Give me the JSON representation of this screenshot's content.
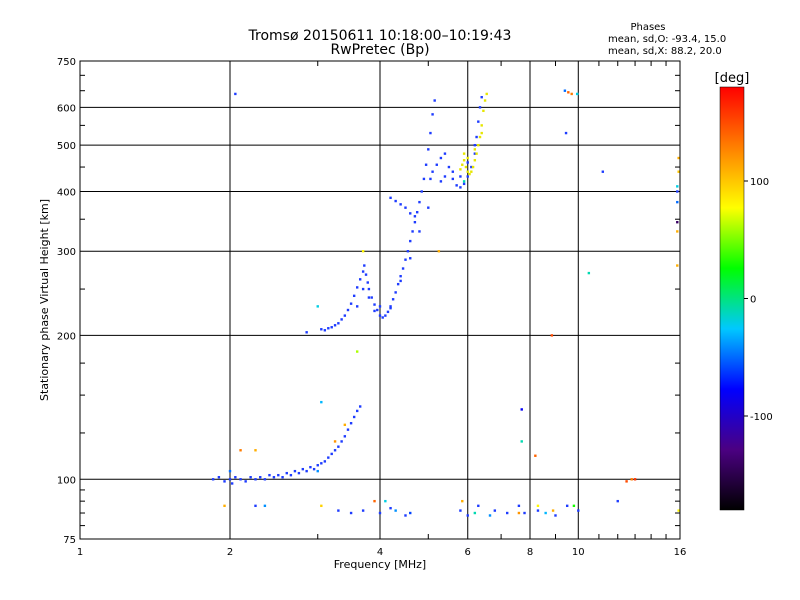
{
  "chart_data": {
    "type": "scatter",
    "title": "Tromsø 20150611 10:18:00–10:19:43",
    "subtitle": "RwPretec (Bp)",
    "xlabel": "Frequency [MHz]",
    "ylabel": "Stationary phase Virtual Height [km]",
    "x_scale": "log",
    "y_scale": "log",
    "xlim": [
      1,
      16
    ],
    "ylim": [
      75,
      750
    ],
    "x_ticks": [
      1,
      2,
      4,
      6,
      8,
      10,
      16
    ],
    "y_ticks": [
      75,
      100,
      200,
      300,
      400,
      500,
      600,
      750
    ],
    "grid": true,
    "stats": {
      "title": "Phases",
      "line1": "mean, sd,O:  -93.4, 15.0",
      "line2": "mean, sd,X:  88.2, 20.0"
    },
    "colorbar": {
      "label": "[deg]",
      "range": [
        -180,
        180
      ],
      "ticks": [
        -100,
        0,
        100
      ],
      "colors": [
        "#000000",
        "#4b0082",
        "#0000ff",
        "#00c8ff",
        "#00ff00",
        "#ffff00",
        "#ff8000",
        "#ff0000"
      ]
    },
    "series": [
      {
        "name": "O",
        "points": [
          [
            1.85,
            100
          ],
          [
            1.9,
            101
          ],
          [
            1.95,
            99
          ],
          [
            2.0,
            100
          ],
          [
            2.02,
            98
          ],
          [
            2.05,
            101
          ],
          [
            2.1,
            100
          ],
          [
            2.15,
            99
          ],
          [
            2.2,
            101
          ],
          [
            2.25,
            100
          ],
          [
            2.3,
            101
          ],
          [
            2.35,
            100
          ],
          [
            2.4,
            102
          ],
          [
            2.45,
            101
          ],
          [
            2.5,
            102
          ],
          [
            2.55,
            101
          ],
          [
            2.6,
            103
          ],
          [
            2.65,
            102
          ],
          [
            2.7,
            104
          ],
          [
            2.75,
            103
          ],
          [
            2.8,
            105
          ],
          [
            2.85,
            104
          ],
          [
            2.9,
            106
          ],
          [
            2.95,
            105
          ],
          [
            3.0,
            107
          ],
          [
            3.05,
            108
          ],
          [
            3.1,
            109
          ],
          [
            3.15,
            111
          ],
          [
            3.2,
            113
          ],
          [
            3.25,
            115
          ],
          [
            3.3,
            117
          ],
          [
            3.35,
            120
          ],
          [
            3.4,
            123
          ],
          [
            3.45,
            127
          ],
          [
            3.5,
            131
          ],
          [
            3.55,
            135
          ],
          [
            3.6,
            139
          ],
          [
            3.65,
            142
          ],
          [
            3.05,
            206
          ],
          [
            3.1,
            205
          ],
          [
            3.15,
            207
          ],
          [
            3.2,
            208
          ],
          [
            3.25,
            210
          ],
          [
            3.3,
            212
          ],
          [
            3.35,
            216
          ],
          [
            3.4,
            220
          ],
          [
            3.45,
            226
          ],
          [
            3.5,
            233
          ],
          [
            3.55,
            242
          ],
          [
            3.6,
            252
          ],
          [
            3.65,
            262
          ],
          [
            3.7,
            272
          ],
          [
            3.72,
            280
          ],
          [
            3.75,
            268
          ],
          [
            3.78,
            258
          ],
          [
            3.8,
            250
          ],
          [
            3.85,
            240
          ],
          [
            3.9,
            232
          ],
          [
            3.95,
            226
          ],
          [
            4.0,
            220
          ],
          [
            4.05,
            218
          ],
          [
            4.1,
            220
          ],
          [
            4.15,
            224
          ],
          [
            4.2,
            230
          ],
          [
            4.25,
            238
          ],
          [
            4.3,
            246
          ],
          [
            4.35,
            256
          ],
          [
            4.4,
            266
          ],
          [
            4.45,
            276
          ],
          [
            4.5,
            288
          ],
          [
            4.55,
            300
          ],
          [
            4.6,
            315
          ],
          [
            4.65,
            330
          ],
          [
            4.7,
            345
          ],
          [
            4.75,
            362
          ],
          [
            4.8,
            380
          ],
          [
            4.85,
            400
          ],
          [
            4.9,
            425
          ],
          [
            4.95,
            455
          ],
          [
            5.0,
            490
          ],
          [
            5.05,
            530
          ],
          [
            5.1,
            580
          ],
          [
            5.15,
            620
          ],
          [
            3.6,
            230
          ],
          [
            3.7,
            250
          ],
          [
            3.8,
            240
          ],
          [
            3.9,
            225
          ],
          [
            4.0,
            230
          ],
          [
            4.2,
            228
          ],
          [
            4.4,
            260
          ],
          [
            4.6,
            290
          ],
          [
            4.8,
            330
          ],
          [
            5.0,
            370
          ],
          [
            4.2,
            388
          ],
          [
            4.3,
            382
          ],
          [
            4.4,
            376
          ],
          [
            4.5,
            370
          ],
          [
            4.6,
            360
          ],
          [
            4.7,
            355
          ],
          [
            5.05,
            425
          ],
          [
            5.1,
            440
          ],
          [
            5.2,
            455
          ],
          [
            5.3,
            470
          ],
          [
            5.4,
            480
          ],
          [
            5.5,
            450
          ],
          [
            5.6,
            425
          ],
          [
            5.7,
            412
          ],
          [
            5.8,
            408
          ],
          [
            5.9,
            415
          ],
          [
            6.0,
            430
          ],
          [
            6.1,
            450
          ],
          [
            6.2,
            480
          ],
          [
            6.25,
            520
          ],
          [
            6.3,
            560
          ],
          [
            6.35,
            600
          ],
          [
            6.4,
            630
          ],
          [
            5.3,
            420
          ],
          [
            5.4,
            430
          ],
          [
            5.6,
            440
          ],
          [
            5.8,
            430
          ],
          [
            6.0,
            460
          ],
          [
            6.2,
            500
          ],
          [
            2.85,
            203
          ],
          [
            2.05,
            640
          ],
          [
            9.45,
            530
          ],
          [
            11.2,
            440
          ],
          [
            15.8,
            400
          ],
          [
            2.25,
            88
          ],
          [
            3.3,
            86
          ],
          [
            3.5,
            85
          ],
          [
            3.7,
            86
          ],
          [
            4.0,
            85
          ],
          [
            4.2,
            87
          ],
          [
            4.5,
            84
          ],
          [
            5.8,
            86
          ],
          [
            6.0,
            84
          ],
          [
            6.3,
            88
          ],
          [
            6.8,
            86
          ],
          [
            7.2,
            85
          ],
          [
            7.6,
            88
          ],
          [
            7.8,
            85
          ],
          [
            8.3,
            86
          ],
          [
            9.0,
            84
          ],
          [
            9.5,
            88
          ],
          [
            10.0,
            86
          ],
          [
            12.0,
            90
          ]
        ]
      },
      {
        "name": "X",
        "points": [
          [
            5.8,
            445
          ],
          [
            5.85,
            455
          ],
          [
            5.9,
            465
          ],
          [
            5.95,
            450
          ],
          [
            6.0,
            440
          ],
          [
            6.05,
            435
          ],
          [
            6.1,
            440
          ],
          [
            6.15,
            450
          ],
          [
            6.2,
            465
          ],
          [
            6.25,
            480
          ],
          [
            6.3,
            500
          ],
          [
            6.35,
            520
          ],
          [
            6.4,
            550
          ],
          [
            6.45,
            590
          ],
          [
            6.5,
            620
          ],
          [
            6.55,
            640
          ],
          [
            5.9,
            480
          ],
          [
            6.0,
            470
          ],
          [
            6.2,
            490
          ],
          [
            6.4,
            530
          ]
        ]
      }
    ],
    "scatter_extra": [
      [
        3.0,
        230,
        -20
      ],
      [
        3.05,
        145,
        -30
      ],
      [
        3.6,
        185,
        60
      ],
      [
        3.7,
        300,
        80
      ],
      [
        5.25,
        300,
        110
      ],
      [
        2.1,
        115,
        130
      ],
      [
        2.25,
        115,
        110
      ],
      [
        2.35,
        88,
        -40
      ],
      [
        1.95,
        88,
        110
      ],
      [
        3.05,
        88,
        95
      ],
      [
        3.9,
        90,
        140
      ],
      [
        4.1,
        90,
        -20
      ],
      [
        4.3,
        86,
        -40
      ],
      [
        4.6,
        85,
        -60
      ],
      [
        5.85,
        90,
        110
      ],
      [
        6.2,
        85,
        -10
      ],
      [
        6.65,
        84,
        -40
      ],
      [
        7.6,
        85,
        120
      ],
      [
        7.7,
        140,
        -80
      ],
      [
        7.7,
        120,
        -10
      ],
      [
        8.2,
        112,
        140
      ],
      [
        8.3,
        88,
        80
      ],
      [
        8.6,
        85,
        -30
      ],
      [
        8.9,
        86,
        110
      ],
      [
        8.85,
        200,
        150
      ],
      [
        9.4,
        650,
        -50
      ],
      [
        9.55,
        645,
        140
      ],
      [
        9.7,
        640,
        130
      ],
      [
        9.95,
        640,
        -20
      ],
      [
        10.5,
        270,
        -10
      ],
      [
        9.8,
        88,
        30
      ],
      [
        12.5,
        99,
        150
      ],
      [
        12.8,
        100,
        130
      ],
      [
        13.0,
        100,
        160
      ],
      [
        15.9,
        470,
        110
      ],
      [
        15.9,
        440,
        100
      ],
      [
        15.8,
        410,
        -20
      ],
      [
        15.8,
        380,
        -50
      ],
      [
        15.8,
        345,
        -140
      ],
      [
        15.8,
        330,
        110
      ],
      [
        15.8,
        280,
        110
      ],
      [
        15.9,
        86,
        80
      ],
      [
        5.9,
        420,
        -10
      ],
      [
        2.0,
        104,
        -50
      ],
      [
        3.0,
        104,
        -40
      ],
      [
        3.4,
        130,
        110
      ],
      [
        3.25,
        120,
        120
      ]
    ]
  }
}
